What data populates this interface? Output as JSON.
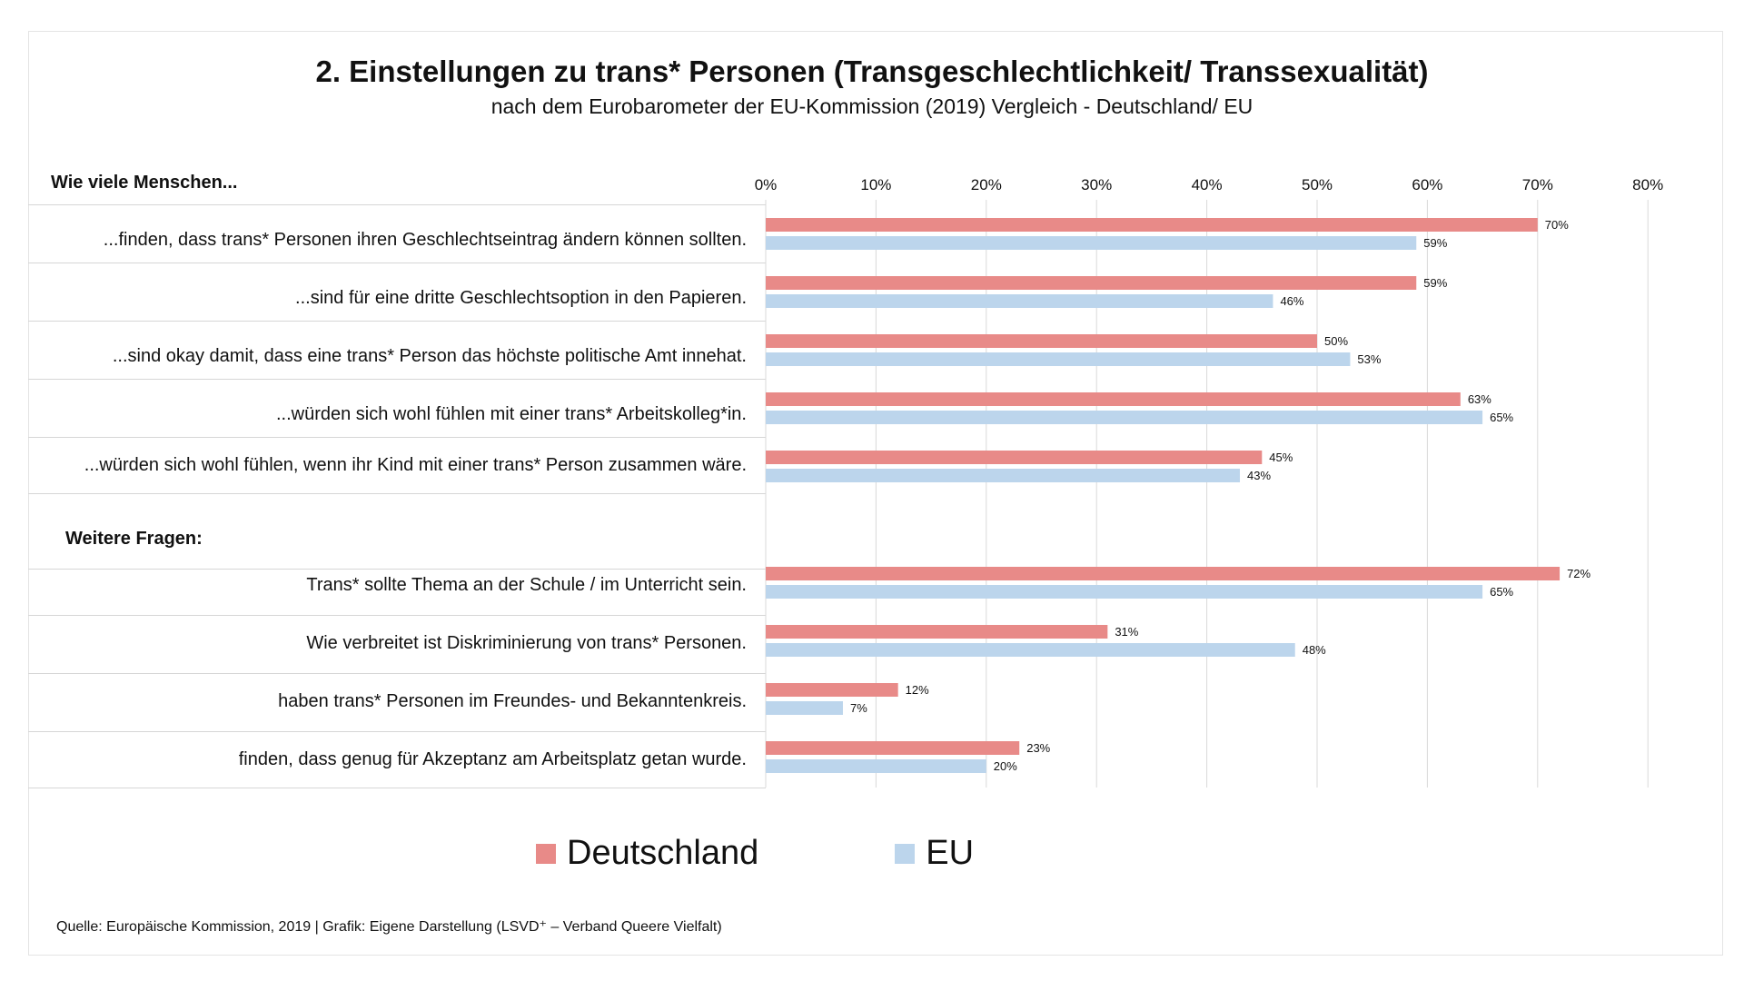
{
  "title": "2. Einstellungen zu trans* Personen (Transgeschlechtlichkeit/ Transsexualität)",
  "subtitle": "nach dem Eurobarometer der EU-Kommission (2019) Vergleich - Deutschland/ EU",
  "section1_heading": "Wie viele Menschen...",
  "section2_heading": "Weitere Fragen:",
  "source": "Quelle: Europäische Kommission, 2019 | Grafik: Eigene Darstellung (LSVD⁺ – Verband Queere Vielfalt)",
  "colors": {
    "deutschland": "#e88a88",
    "eu": "#bcd5ec",
    "grid": "#d9d9d9"
  },
  "chart_data": {
    "type": "bar",
    "orientation": "horizontal",
    "title": "2. Einstellungen zu trans* Personen (Transgeschlechtlichkeit/ Transsexualität)",
    "subtitle": "nach dem Eurobarometer der EU-Kommission (2019) Vergleich - Deutschland/ EU",
    "xlim": [
      0,
      80
    ],
    "xticks": [
      "0%",
      "10%",
      "20%",
      "30%",
      "40%",
      "50%",
      "60%",
      "70%",
      "80%"
    ],
    "grid": true,
    "legend_position": "bottom",
    "categories": [
      "...finden, dass trans* Personen ihren Geschlechtseintrag ändern können sollten.",
      "...sind für eine dritte Geschlechtsoption in den Papieren.",
      "...sind okay damit, dass eine trans* Person das höchste politische Amt innehat.",
      "...würden sich wohl fühlen mit einer trans* Arbeitskolleg*in.",
      "...würden sich wohl fühlen, wenn ihr Kind mit einer trans* Person zusammen wäre.",
      "Trans* sollte Thema an der Schule / im Unterricht sein.",
      "Wie verbreitet ist Diskriminierung von trans* Personen.",
      "haben trans* Personen im Freundes- und Bekanntenkreis.",
      "finden, dass genug für Akzeptanz am Arbeitsplatz getan wurde."
    ],
    "series": [
      {
        "name": "Deutschland",
        "values": [
          70,
          59,
          50,
          63,
          45,
          72,
          31,
          12,
          23
        ],
        "labels": [
          "70%",
          "59%",
          "50%",
          "63%",
          "45%",
          "72%",
          "31%",
          "12%",
          "23%"
        ]
      },
      {
        "name": "EU",
        "values": [
          59,
          46,
          53,
          65,
          43,
          65,
          48,
          7,
          20
        ],
        "labels": [
          "59%",
          "46%",
          "53%",
          "65%",
          "43%",
          "65%",
          "48%",
          "7%",
          "20%"
        ]
      }
    ]
  }
}
